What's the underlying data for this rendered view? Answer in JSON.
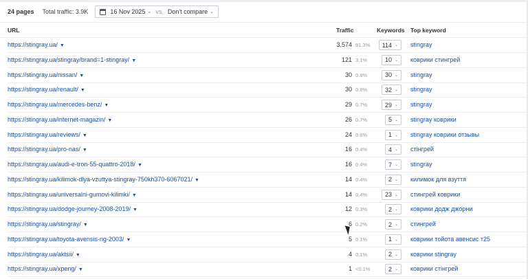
{
  "toolbar": {
    "pages": "24 pages",
    "total_traffic": "Total traffic: 3.9K",
    "date": "16 Nov 2025",
    "vs": "vs.",
    "compare": "Don't compare"
  },
  "columns": {
    "url": "URL",
    "traffic": "Traffic",
    "keywords": "Keywords",
    "top_keyword": "Top keyword"
  },
  "rows": [
    {
      "url": "https://stingray.ua/",
      "traffic": "3,574",
      "pct": "91.3%",
      "keywords": "114",
      "top": "stingray"
    },
    {
      "url": "https://stingray.ua/stingray/brand=1-stingray/",
      "traffic": "121",
      "pct": "3.1%",
      "keywords": "10",
      "top": "коврики стингрей"
    },
    {
      "url": "https://stingray.ua/nissan/",
      "traffic": "30",
      "pct": "0.8%",
      "keywords": "30",
      "top": "stingray"
    },
    {
      "url": "https://stingray.ua/renault/",
      "traffic": "30",
      "pct": "0.8%",
      "keywords": "32",
      "top": "stingray"
    },
    {
      "url": "https://stingray.ua/mercedes-benz/",
      "traffic": "29",
      "pct": "0.7%",
      "keywords": "29",
      "top": "stingray"
    },
    {
      "url": "https://stingray.ua/internet-magazin/",
      "traffic": "26",
      "pct": "0.7%",
      "keywords": "5",
      "top": "stingray коврики"
    },
    {
      "url": "https://stingray.ua/reviews/",
      "traffic": "24",
      "pct": "0.6%",
      "keywords": "1",
      "top": "stingray коврики отзывы"
    },
    {
      "url": "https://stingray.ua/pro-nas/",
      "traffic": "16",
      "pct": "0.4%",
      "keywords": "4",
      "top": "стінгрей"
    },
    {
      "url": "https://stingray.ua/audi-e-tron-55-quattro-2018/",
      "traffic": "16",
      "pct": "0.4%",
      "keywords": "7",
      "top": "stingray"
    },
    {
      "url": "https://stingray.ua/kilimok-dlya-vzuttya-stingray-750kh370-6067021/",
      "traffic": "14",
      "pct": "0.4%",
      "keywords": "2",
      "top": "килимок для взуття"
    },
    {
      "url": "https://stingray.ua/universalni-gumovi-kilimki/",
      "traffic": "14",
      "pct": "0.4%",
      "keywords": "23",
      "top": "стингрей коврики"
    },
    {
      "url": "https://stingray.ua/dodge-journey-2008-2019/",
      "traffic": "12",
      "pct": "0.3%",
      "keywords": "2",
      "top": "коврики додж джорни"
    },
    {
      "url": "https://stingray.ua/stingray/",
      "traffic": "6",
      "pct": "0.2%",
      "keywords": "2",
      "top": "стингрей"
    },
    {
      "url": "https://stingray.ua/toyota-avensis-ng-2003/",
      "traffic": "5",
      "pct": "0.1%",
      "keywords": "1",
      "top": "коврики тойота авенсис т25"
    },
    {
      "url": "https://stingray.ua/aktsii/",
      "traffic": "4",
      "pct": "0.1%",
      "keywords": "2",
      "top": "коврики stingray"
    },
    {
      "url": "https://stingray.ua/xpeng/",
      "traffic": "1",
      "pct": "<0.1%",
      "keywords": "2",
      "top": "коврики стінгрей"
    }
  ]
}
